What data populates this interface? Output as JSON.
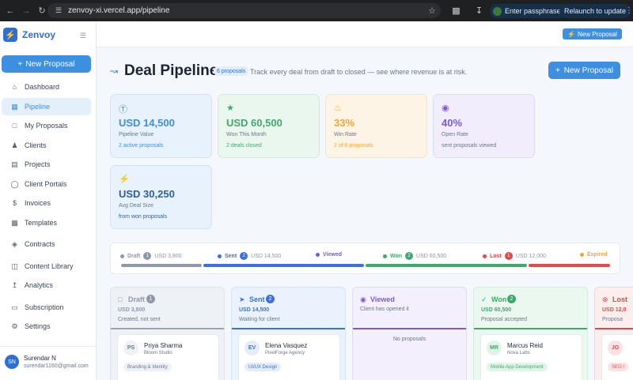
{
  "browser": {
    "url": "zenvoy-xi.vercel.app/pipeline",
    "passphrase_label": "Enter passphrase",
    "relaunch_label": "Relaunch to update"
  },
  "sidebar": {
    "brand": "Zenvoy",
    "new_button": "New Proposal",
    "items": [
      {
        "label": "Dashboard",
        "icon": "home-icon"
      },
      {
        "label": "Pipeline",
        "icon": "chart-icon",
        "active": true
      },
      {
        "label": "My Proposals",
        "icon": "document-icon"
      },
      {
        "label": "Clients",
        "icon": "users-icon"
      },
      {
        "label": "Projects",
        "icon": "folder-icon"
      },
      {
        "label": "Client Portals",
        "icon": "globe-icon"
      },
      {
        "label": "Invoices",
        "icon": "dollar-icon"
      },
      {
        "label": "Templates",
        "icon": "layers-icon"
      },
      {
        "label": "Contracts",
        "icon": "shield-icon"
      },
      {
        "label": "Content Library",
        "icon": "book-icon"
      },
      {
        "label": "Analytics",
        "icon": "analytics-icon"
      },
      {
        "label": "Subscription",
        "icon": "card-icon"
      },
      {
        "label": "Settings",
        "icon": "gear-icon"
      }
    ],
    "user": {
      "initials": "SN",
      "name": "Surendar N",
      "email": "surendar1160@gmail.com"
    }
  },
  "topbar": {
    "new_button": "New Proposal"
  },
  "header": {
    "title": "Deal Pipeline",
    "badge": "6 proposals",
    "subtitle": "Track every deal from draft to closed — see where revenue is at risk.",
    "new_button": "New Proposal"
  },
  "stats": [
    {
      "value": "USD 14,500",
      "label": "Pipeline Value",
      "sub": "2 active proposals",
      "color": "#3d8fe0"
    },
    {
      "value": "USD 60,500",
      "label": "Won This Month",
      "sub": "2 deals closed",
      "color": "#3fa86b"
    },
    {
      "value": "33%",
      "label": "Win Rate",
      "sub": "2 of 6 proposals",
      "color": "#f0a53a"
    },
    {
      "value": "40%",
      "label": "Open Rate",
      "sub": "sent proposals viewed",
      "color": "#7a5ad9"
    },
    {
      "value": "USD 30,250",
      "label": "Avg Deal Size",
      "sub": "from won proposals",
      "color": "#2f5f9e"
    }
  ],
  "pipeline": [
    {
      "name": "Draft",
      "count": "1",
      "amount": "USD 3,800",
      "color": "#8f98a8"
    },
    {
      "name": "Sent",
      "count": "2",
      "amount": "USD 14,500",
      "color": "#3d6fe0"
    },
    {
      "name": "Viewed",
      "count": "",
      "amount": "",
      "color": "#7a5ad9"
    },
    {
      "name": "Won",
      "count": "2",
      "amount": "USD 60,500",
      "color": "#3fa86b"
    },
    {
      "name": "Lost",
      "count": "1",
      "amount": "USD 12,000",
      "color": "#e04a4a"
    },
    {
      "name": "Expired",
      "count": "",
      "amount": "",
      "color": "#f0a53a"
    }
  ],
  "columns": [
    {
      "name": "Draft",
      "count": "1",
      "amount": "USD 3,800",
      "sub": "Created, not sent",
      "card": {
        "initials": "PS",
        "name": "Priya Sharma",
        "company": "Bloom Studio",
        "tag": "Branding & Identity"
      }
    },
    {
      "name": "Sent",
      "count": "2",
      "amount": "USD 14,500",
      "sub": "Waiting for client",
      "card": {
        "initials": "EV",
        "name": "Elena Vasquez",
        "company": "PixelForge Agency",
        "tag": "UI/UX Design"
      }
    },
    {
      "name": "Viewed",
      "count": "",
      "amount": "",
      "sub": "Client has opened it",
      "empty": "No proposals"
    },
    {
      "name": "Won",
      "count": "2",
      "amount": "USD 60,500",
      "sub": "Proposal accepted",
      "card": {
        "initials": "MR",
        "name": "Marcus Reid",
        "company": "Nova Labs",
        "tag": "Mobile App Development"
      }
    },
    {
      "name": "Lost",
      "count": "1",
      "amount": "USD 12,0",
      "sub": "Proposa",
      "card": {
        "initials": "JO",
        "name": "",
        "company": "",
        "tag": "SEO /"
      }
    }
  ]
}
